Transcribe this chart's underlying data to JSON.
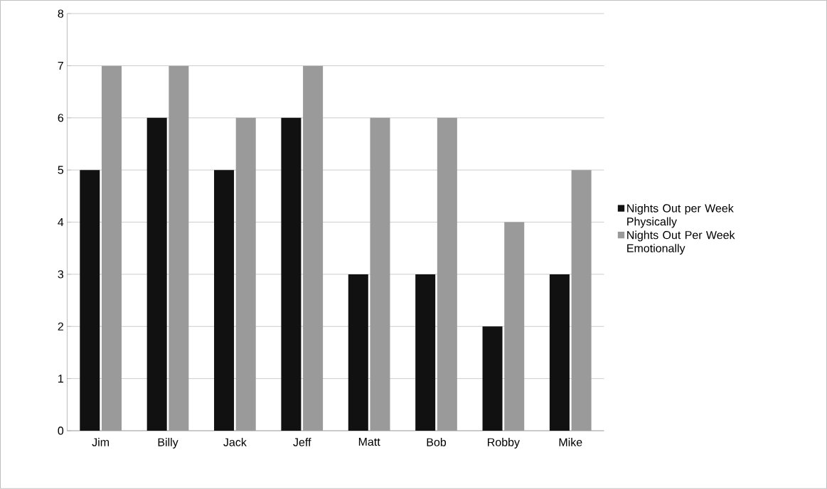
{
  "chart_data": {
    "type": "bar",
    "categories": [
      "Jim",
      "Billy",
      "Jack",
      "Jeff",
      "Matt",
      "Bob",
      "Robby",
      "Mike"
    ],
    "series": [
      {
        "name": "Nights Out per Week Physically",
        "color": "#111111",
        "values": [
          5,
          6,
          5,
          6,
          3,
          3,
          2,
          3
        ]
      },
      {
        "name": "Nights Out Per Week Emotionally",
        "color": "#9a9a9a",
        "values": [
          7,
          7,
          6,
          7,
          6,
          6,
          4,
          5
        ]
      }
    ],
    "ylim": [
      0,
      8
    ],
    "yticks": [
      0,
      1,
      2,
      3,
      4,
      5,
      6,
      7,
      8
    ],
    "grid": "y",
    "legend": "right"
  }
}
